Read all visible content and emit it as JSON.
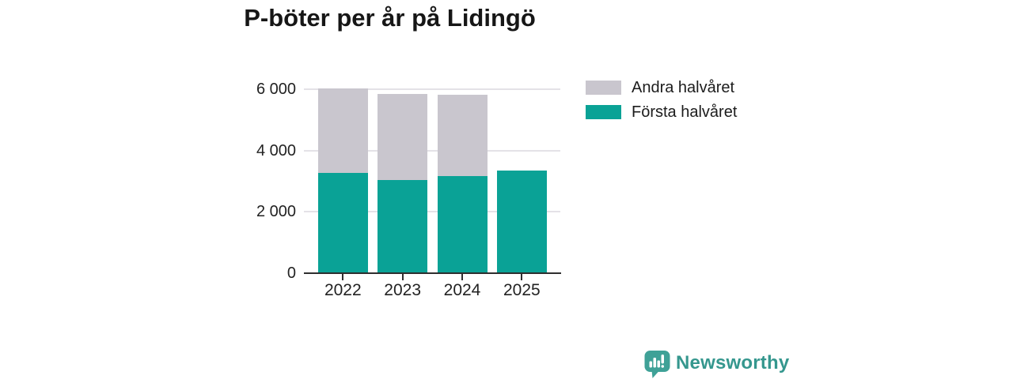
{
  "chart_data": {
    "type": "bar",
    "stacked": true,
    "title": "P-böter per år på Lidingö",
    "categories": [
      "2022",
      "2023",
      "2024",
      "2025"
    ],
    "series": [
      {
        "name": "Första halvåret",
        "color": "#0aa296",
        "values": [
          3260,
          3050,
          3160,
          3360
        ]
      },
      {
        "name": "Andra halvåret",
        "color": "#c9c6ce",
        "values": [
          2760,
          2790,
          2650,
          0
        ]
      }
    ],
    "ylim": [
      0,
      6000
    ],
    "yticks": [
      {
        "value": 0,
        "label": "0"
      },
      {
        "value": 2000,
        "label": "2 000"
      },
      {
        "value": 4000,
        "label": "4 000"
      },
      {
        "value": 6000,
        "label": "6 000"
      }
    ],
    "grid": "horizontal",
    "legend_position": "right-top",
    "xlabel": "",
    "ylabel": ""
  },
  "branding": {
    "name": "Newsworthy",
    "icon": "newsworthy-speech-bubble-chart-icon",
    "text_color": "#35978e",
    "icon_color": "#3fa197"
  },
  "colors": {
    "background": "#ffffff",
    "gridline": "#e4e2e7",
    "axis": "#2e2e2e",
    "text": "#222222",
    "title": "#161616"
  }
}
